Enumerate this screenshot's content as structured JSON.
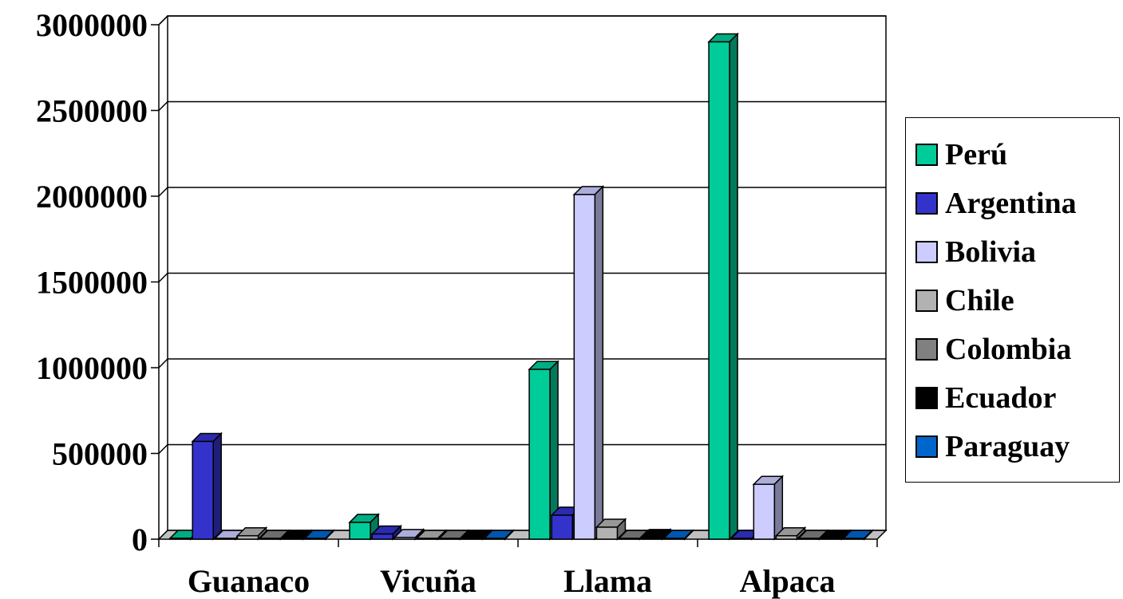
{
  "chart_data": {
    "type": "bar",
    "categories": [
      "Guanaco",
      "Vicuña",
      "Llama",
      "Alpaca"
    ],
    "series": [
      {
        "name": "Perú",
        "color": "#00CC99",
        "values": [
          5000,
          98000,
          990000,
          2900000
        ]
      },
      {
        "name": "Argentina",
        "color": "#3333CC",
        "values": [
          570000,
          30000,
          140000,
          0
        ]
      },
      {
        "name": "Bolivia",
        "color": "#CCCCFF",
        "values": [
          0,
          10000,
          2010000,
          320000
        ]
      },
      {
        "name": "Chile",
        "color": "#B2B2B2",
        "values": [
          20000,
          0,
          70000,
          20000
        ]
      },
      {
        "name": "Colombia",
        "color": "#808080",
        "values": [
          0,
          0,
          0,
          0
        ]
      },
      {
        "name": "Ecuador",
        "color": "#000000",
        "values": [
          0,
          0,
          10000,
          0
        ]
      },
      {
        "name": "Paraguay",
        "color": "#0066CC",
        "values": [
          0,
          0,
          0,
          0
        ]
      }
    ],
    "y_ticks": [
      "0",
      "500000",
      "1000000",
      "1500000",
      "2000000",
      "2500000",
      "3000000"
    ],
    "ylim": [
      0,
      3000000
    ],
    "grid": true,
    "legend_position": "right",
    "style": "3d-clustered"
  }
}
